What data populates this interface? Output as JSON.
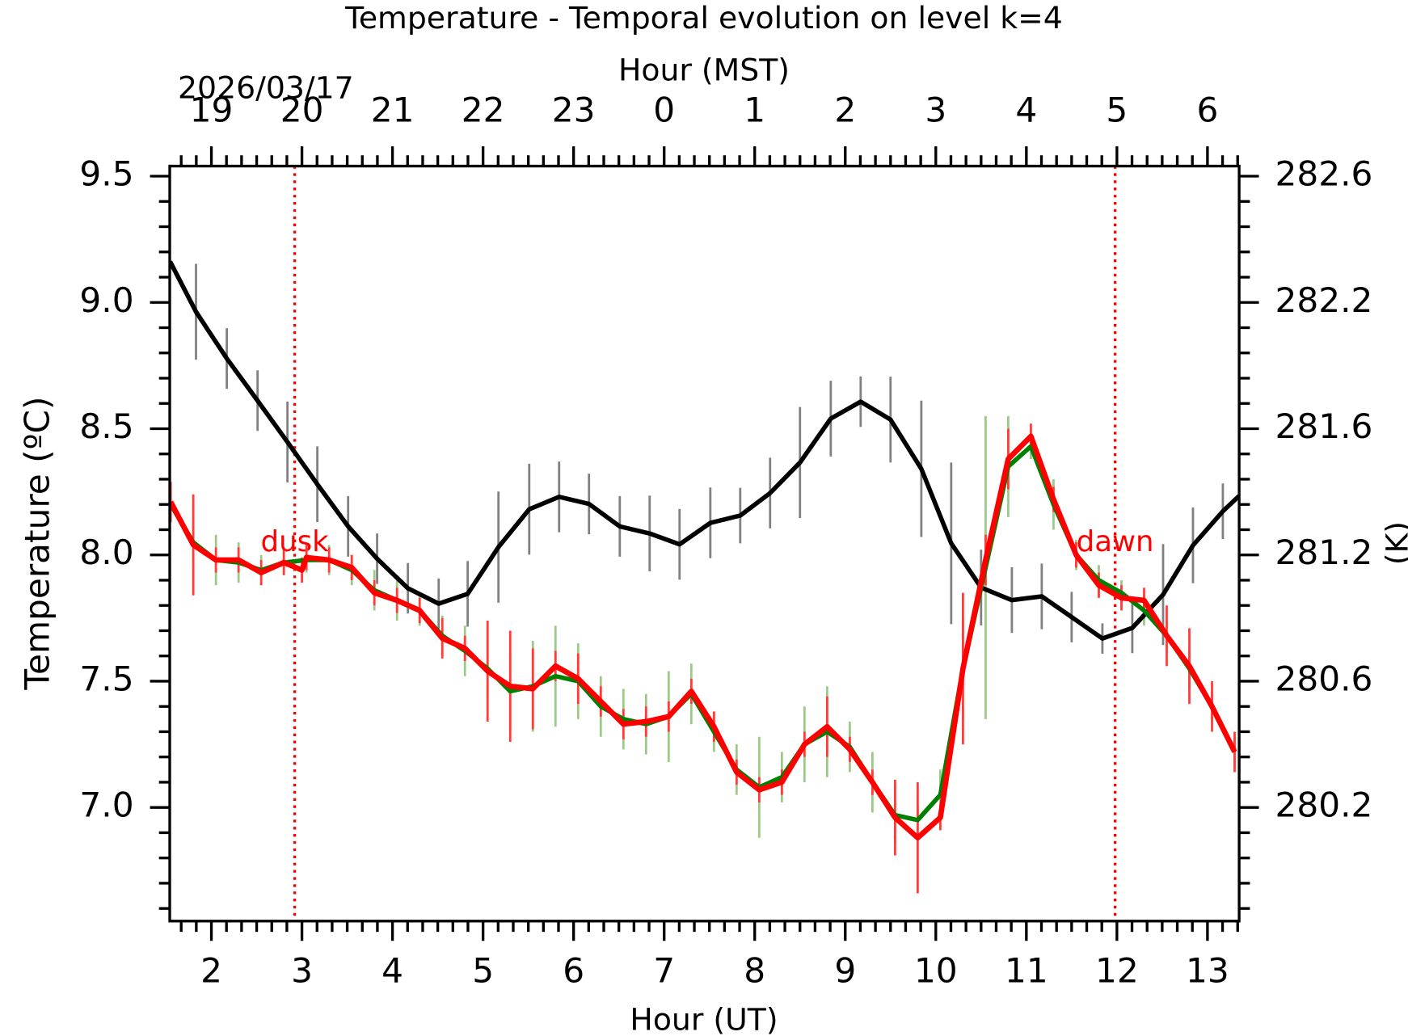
{
  "chart_data": {
    "type": "line",
    "title": "Temperature - Temporal evolution on level k=4",
    "date_label": "2026/03/17",
    "xlabel": "Hour (UT)",
    "x2label": "Hour (MST)",
    "ylabel": "Temperature (ºC)",
    "y2label": "(K)",
    "xlim": [
      1.54,
      13.35
    ],
    "xticks": [
      2,
      3,
      4,
      5,
      6,
      7,
      8,
      9,
      10,
      11,
      12,
      13
    ],
    "x2lim": [
      18.54,
      30.35
    ],
    "x2ticks": [
      19,
      20,
      21,
      22,
      23,
      {
        "value": 24,
        "label": "0"
      },
      {
        "value": 25,
        "label": "1"
      },
      {
        "value": 26,
        "label": "2"
      },
      {
        "value": 27,
        "label": "3"
      },
      {
        "value": 28,
        "label": "4"
      },
      {
        "value": 29,
        "label": "5"
      },
      {
        "value": 30,
        "label": "6"
      }
    ],
    "ylim": [
      6.55,
      9.54
    ],
    "yticks": [
      {
        "value": 7,
        "label": "7.0"
      },
      7.5,
      {
        "value": 8,
        "label": "8.0"
      },
      8.5,
      {
        "value": 9,
        "label": "9.0"
      },
      9.5
    ],
    "y2lim": [
      279.7,
      282.69
    ],
    "y2ticks": [
      {
        "value": 280.15,
        "label": "280.2"
      },
      {
        "value": 280.65,
        "label": "280.6"
      },
      {
        "value": 281.15,
        "label": "281.2"
      },
      {
        "value": 281.65,
        "label": "281.6"
      },
      {
        "value": 282.15,
        "label": "282.2"
      },
      {
        "value": 282.65,
        "label": "282.6"
      }
    ],
    "vlines": [
      {
        "x": 2.92,
        "label": "dusk",
        "color": "#ff0000"
      },
      {
        "x": 11.98,
        "label": "dawn",
        "color": "#ff0000"
      }
    ],
    "series": [
      {
        "color": "#008000",
        "error_color": "#9cc98a",
        "width": 5,
        "x": [
          1.55,
          1.8,
          2.05,
          2.3,
          2.55,
          2.8,
          3.05,
          3.3,
          3.55,
          3.8,
          4.05,
          4.3,
          4.55,
          4.8,
          5.05,
          5.3,
          5.55,
          5.8,
          6.05,
          6.3,
          6.55,
          6.8,
          7.05,
          7.3,
          7.55,
          7.8,
          8.05,
          8.3,
          8.55,
          8.8,
          9.05,
          9.3,
          9.55,
          9.8,
          10.05,
          10.3,
          10.55,
          10.8,
          11.05,
          11.3,
          11.55,
          11.8,
          12.05,
          12.3,
          12.55,
          12.8,
          13.05,
          13.3
        ],
        "values": [
          8.2,
          8.05,
          7.98,
          7.97,
          7.94,
          7.97,
          7.98,
          7.98,
          7.94,
          7.86,
          7.82,
          7.78,
          7.68,
          7.62,
          7.55,
          7.46,
          7.48,
          7.52,
          7.5,
          7.4,
          7.35,
          7.33,
          7.36,
          7.45,
          7.3,
          7.15,
          7.08,
          7.12,
          7.25,
          7.3,
          7.24,
          7.1,
          6.97,
          6.95,
          7.05,
          7.55,
          7.95,
          8.35,
          8.43,
          8.2,
          8,
          7.9,
          7.85,
          7.78,
          7.68,
          7.55,
          7.4,
          7.22
        ],
        "errors": [
          0.04,
          0.1,
          0.1,
          0.08,
          0.06,
          0.05,
          0.05,
          0.06,
          0.06,
          0.08,
          0.08,
          0.06,
          0.08,
          0.1,
          0.12,
          0.15,
          0.18,
          0.2,
          0.15,
          0.12,
          0.12,
          0.12,
          0.18,
          0.12,
          0.08,
          0.1,
          0.2,
          0.1,
          0.15,
          0.18,
          0.1,
          0.12,
          0.12,
          0.06,
          0.1,
          0.2,
          0.6,
          0.2,
          0.05,
          0.1,
          0.06,
          0.06,
          0.05,
          0.06,
          0.06,
          0.08,
          0.06,
          0.06
        ]
      },
      {
        "color": "#ff0000",
        "error_color": "#ff3b3b",
        "width": 6,
        "x": [
          1.55,
          1.8,
          2.05,
          2.3,
          2.55,
          2.8,
          3.0,
          3.05,
          3.3,
          3.55,
          3.8,
          4.05,
          4.3,
          4.55,
          4.8,
          5.05,
          5.3,
          5.55,
          5.8,
          6.05,
          6.3,
          6.55,
          6.8,
          7.05,
          7.3,
          7.55,
          7.8,
          8.05,
          8.3,
          8.55,
          8.8,
          9.05,
          9.3,
          9.55,
          9.8,
          10.05,
          10.3,
          10.55,
          10.8,
          11.05,
          11.3,
          11.55,
          11.8,
          12.05,
          12.3,
          12.55,
          12.8,
          13.05,
          13.3
        ],
        "values": [
          8.21,
          8.04,
          7.98,
          7.98,
          7.93,
          7.97,
          7.94,
          7.99,
          7.98,
          7.95,
          7.85,
          7.82,
          7.78,
          7.67,
          7.63,
          7.54,
          7.48,
          7.47,
          7.56,
          7.51,
          7.42,
          7.33,
          7.34,
          7.36,
          7.46,
          7.32,
          7.14,
          7.07,
          7.1,
          7.25,
          7.32,
          7.23,
          7.1,
          6.96,
          6.88,
          6.96,
          7.55,
          7.98,
          8.38,
          8.47,
          8.22,
          8.0,
          7.88,
          7.83,
          7.82,
          7.68,
          7.56,
          7.4,
          7.22
        ],
        "errors": [
          0.08,
          0.2,
          0.05,
          0.05,
          0.05,
          0.05,
          0.05,
          0.05,
          0.05,
          0.05,
          0.05,
          0.05,
          0.05,
          0.08,
          0.05,
          0.2,
          0.22,
          0.16,
          0.06,
          0.1,
          0.06,
          0.06,
          0.06,
          0.06,
          0.05,
          0.06,
          0.05,
          0.05,
          0.05,
          0.05,
          0.12,
          0.05,
          0.05,
          0.15,
          0.22,
          0.05,
          0.3,
          0.1,
          0.12,
          0.05,
          0.05,
          0.05,
          0.05,
          0.05,
          0.05,
          0.12,
          0.15,
          0.1,
          0.08
        ]
      },
      {
        "color": "#000000",
        "error_color": "#808080",
        "width": 5,
        "x": [
          1.544,
          1.83,
          2.17,
          2.51,
          2.84,
          3.17,
          3.51,
          3.83,
          4.17,
          4.51,
          4.83,
          5.17,
          5.51,
          5.84,
          6.17,
          6.51,
          6.84,
          7.17,
          7.51,
          7.84,
          8.17,
          8.5,
          8.84,
          9.17,
          9.5,
          9.84,
          10.17,
          10.5,
          10.84,
          11.17,
          11.5,
          11.84,
          12.17,
          12.51,
          12.84,
          13.17,
          13.35
        ],
        "values": [
          9.162,
          8.963,
          8.778,
          8.611,
          8.447,
          8.28,
          8.113,
          7.985,
          7.868,
          7.807,
          7.846,
          8.031,
          8.181,
          8.23,
          8.202,
          8.113,
          8.085,
          8.042,
          8.127,
          8.156,
          8.245,
          8.366,
          8.54,
          8.607,
          8.536,
          8.341,
          8.046,
          7.871,
          7.821,
          7.836,
          7.754,
          7.669,
          7.711,
          7.843,
          8.038,
          8.173,
          8.234
        ],
        "errors": [
          0,
          0.19,
          0.12,
          0.12,
          0.16,
          0.15,
          0.12,
          0.1,
          0.1,
          0.1,
          0.13,
          0.22,
          0.18,
          0.14,
          0.12,
          0.12,
          0.15,
          0.14,
          0.14,
          0.11,
          0.14,
          0.22,
          0.15,
          0.1,
          0.17,
          0.27,
          0.32,
          0.15,
          0.13,
          0.13,
          0.1,
          0.06,
          0.1,
          0.2,
          0.15,
          0.11,
          0
        ]
      }
    ]
  }
}
